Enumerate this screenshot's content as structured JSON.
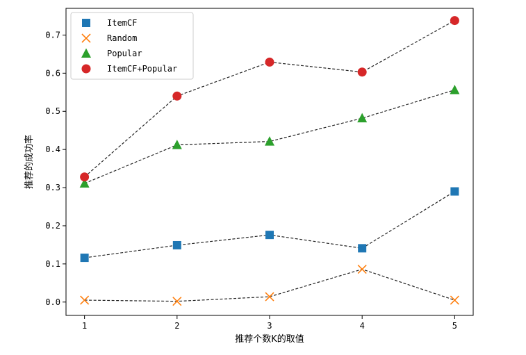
{
  "chart_data": {
    "type": "scatter",
    "xlabel": "推荐个数K的取值",
    "ylabel": "推荐的成功率",
    "x": [
      1,
      2,
      3,
      4,
      5
    ],
    "xticks": [
      "1",
      "2",
      "3",
      "4",
      "5"
    ],
    "yticks": [
      "0.0",
      "0.1",
      "0.2",
      "0.3",
      "0.4",
      "0.5",
      "0.6",
      "0.7"
    ],
    "xlim": [
      0.8,
      5.2
    ],
    "ylim": [
      -0.035,
      0.77
    ],
    "legend_position": "upper-left",
    "line_style": "dashed",
    "line_color": "#222222",
    "series": [
      {
        "name": "ItemCF",
        "marker": "square",
        "color": "#1f77b4",
        "values": [
          0.116,
          0.149,
          0.176,
          0.141,
          0.29
        ]
      },
      {
        "name": "Random",
        "marker": "x",
        "color": "#ff7f0e",
        "values": [
          0.005,
          0.002,
          0.014,
          0.086,
          0.005
        ]
      },
      {
        "name": "Popular",
        "marker": "triangle",
        "color": "#2ca02c",
        "values": [
          0.311,
          0.412,
          0.421,
          0.482,
          0.556
        ]
      },
      {
        "name": "ItemCF+Popular",
        "marker": "circle",
        "color": "#d62728",
        "values": [
          0.328,
          0.54,
          0.629,
          0.603,
          0.738
        ]
      }
    ]
  }
}
